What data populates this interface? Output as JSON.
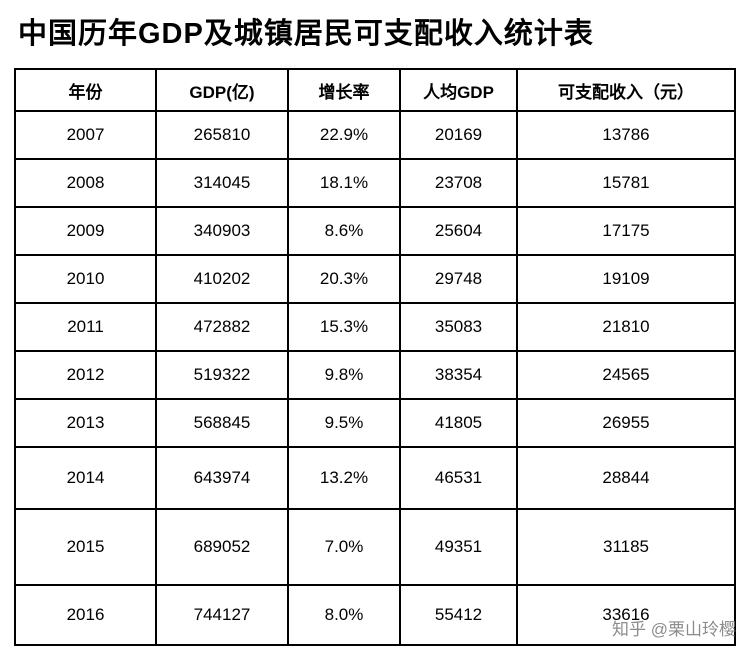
{
  "page": {
    "title": "中国历年GDP及城镇居民可支配收入统计表"
  },
  "watermark": {
    "text": "知乎 @栗山玲樱"
  },
  "chart_data": {
    "type": "table",
    "title": "中国历年GDP及城镇居民可支配收入统计表",
    "columns": [
      "年份",
      "GDP(亿)",
      "增长率",
      "人均GDP",
      "可支配收入（元）"
    ],
    "rows": [
      [
        "2007",
        "265810",
        "22.9%",
        "20169",
        "13786"
      ],
      [
        "2008",
        "314045",
        "18.1%",
        "23708",
        "15781"
      ],
      [
        "2009",
        "340903",
        "8.6%",
        "25604",
        "17175"
      ],
      [
        "2010",
        "410202",
        "20.3%",
        "29748",
        "19109"
      ],
      [
        "2011",
        "472882",
        "15.3%",
        "35083",
        "21810"
      ],
      [
        "2012",
        "519322",
        "9.8%",
        "38354",
        "24565"
      ],
      [
        "2013",
        "568845",
        "9.5%",
        "41805",
        "26955"
      ],
      [
        "2014",
        "643974",
        "13.2%",
        "46531",
        "28844"
      ],
      [
        "2015",
        "689052",
        "7.0%",
        "49351",
        "31185"
      ],
      [
        "2016",
        "744127",
        "8.0%",
        "55412",
        "33616"
      ]
    ]
  }
}
